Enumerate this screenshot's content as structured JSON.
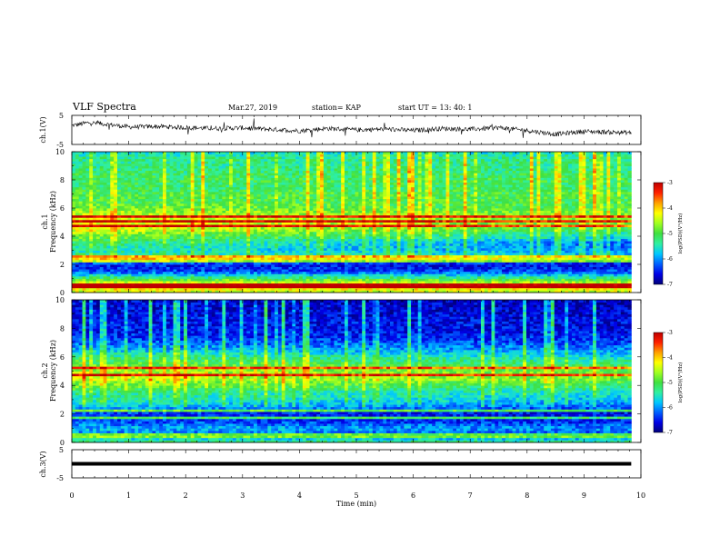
{
  "header": {
    "title": "VLF Spectra",
    "date": "Mar.27, 2019",
    "station": "station= KAP",
    "start_time": "start  UT  =   13: 40: 1"
  },
  "colors": {
    "colormap": [
      "#00007a",
      "#0000e6",
      "#0060ff",
      "#00c8ff",
      "#30f0a0",
      "#40e040",
      "#a0ff20",
      "#ffff00",
      "#ffa000",
      "#ff2000",
      "#c00000"
    ],
    "background": "#ffffff",
    "trace": "#000000"
  },
  "chart_data": [
    {
      "type": "line",
      "id": "ch1_waveform",
      "ylabel": "ch.1(V)",
      "ylim": [
        -5,
        5
      ],
      "y_ticks": [
        "5",
        "-5"
      ],
      "xlim": [
        0,
        10
      ],
      "x_end_data": 9.83,
      "description_values": {
        "baseline_start": 1.5,
        "baseline_mid": 0.0,
        "baseline_end": -0.8
      },
      "series": [
        {
          "x": [
            0,
            0.3,
            0.6,
            1.0,
            1.5,
            2.0,
            2.5,
            3.0,
            3.5,
            4.0,
            4.5,
            5.0,
            5.5,
            6.0,
            6.5,
            7.0,
            7.5,
            8.0,
            8.5,
            9.0,
            9.5,
            9.83
          ],
          "y": [
            1.5,
            2.5,
            2.0,
            1.0,
            1.2,
            0.8,
            0.5,
            0.7,
            0.2,
            -0.3,
            0.5,
            0.0,
            0.3,
            -0.2,
            0.5,
            0.2,
            0.8,
            -0.2,
            -1.5,
            -0.5,
            -0.8,
            -1.0
          ]
        }
      ]
    },
    {
      "type": "heatmap",
      "id": "ch1_spectrogram",
      "ylabel": "ch.1\nFrequency (kHz)",
      "ylim": [
        0,
        10
      ],
      "y_ticks": [
        "0",
        "2",
        "4",
        "6",
        "8",
        "10"
      ],
      "xlim": [
        0,
        10
      ],
      "x_end_data": 9.83,
      "colorbar": {
        "label": "log(PSD)(V²/Hz)",
        "range": [
          -7,
          -3
        ],
        "ticks": [
          "-3",
          "-4",
          "-5",
          "-6",
          "-7"
        ]
      },
      "frequency_profile": {
        "freq_kHz": [
          0,
          0.5,
          1,
          1.5,
          2,
          2.5,
          3,
          3.5,
          4,
          4.5,
          5,
          5.5,
          6,
          6.5,
          7,
          7.5,
          8,
          8.5,
          9,
          9.5,
          10
        ],
        "log_psd_start": [
          -4.5,
          -3.8,
          -5.0,
          -6.3,
          -6.5,
          -5.0,
          -5.5,
          -5.2,
          -4.8,
          -4.3,
          -4.2,
          -4.4,
          -4.8,
          -5.0,
          -5.0,
          -5.2,
          -5.1,
          -5.2,
          -5.3,
          -5.3,
          -5.6
        ],
        "log_psd_end": [
          -4.5,
          -4.0,
          -5.2,
          -6.3,
          -6.6,
          -5.6,
          -6.0,
          -6.2,
          -5.6,
          -5.2,
          -4.8,
          -4.8,
          -5.0,
          -5.1,
          -5.0,
          -5.2,
          -5.1,
          -5.2,
          -5.3,
          -5.3,
          -5.6
        ]
      },
      "line_frequencies_kHz": [
        2.2,
        2.5,
        4.7,
        5.1,
        5.4,
        0.4,
        0.6
      ]
    },
    {
      "type": "heatmap",
      "id": "ch2_spectrogram",
      "ylabel": "ch.2\nFrequency (kHz)",
      "ylim": [
        0,
        10
      ],
      "y_ticks": [
        "0",
        "2",
        "4",
        "6",
        "8",
        "10"
      ],
      "xlim": [
        0,
        10
      ],
      "x_end_data": 9.83,
      "colorbar": {
        "label": "log(PSD)(V²/Hz)",
        "range": [
          -7,
          -3
        ],
        "ticks": [
          "-3",
          "-4",
          "-5",
          "-6",
          "-7"
        ]
      },
      "frequency_profile": {
        "freq_kHz": [
          0,
          0.5,
          1,
          1.5,
          2,
          2.5,
          3,
          3.5,
          4,
          4.5,
          5,
          5.5,
          6,
          6.5,
          7,
          7.5,
          8,
          8.5,
          9,
          9.5,
          10
        ],
        "log_psd_start": [
          -5.0,
          -6.2,
          -5.8,
          -6.3,
          -6.4,
          -5.8,
          -5.4,
          -5.3,
          -4.8,
          -4.4,
          -4.5,
          -4.9,
          -5.2,
          -5.8,
          -6.2,
          -6.4,
          -6.5,
          -6.5,
          -6.6,
          -6.6,
          -6.7
        ],
        "log_psd_end": [
          -5.2,
          -6.4,
          -6.0,
          -6.5,
          -6.6,
          -6.2,
          -5.8,
          -5.6,
          -5.2,
          -4.8,
          -4.9,
          -5.2,
          -5.6,
          -6.0,
          -6.3,
          -6.5,
          -6.6,
          -6.6,
          -6.7,
          -6.7,
          -6.8
        ]
      },
      "line_frequencies_kHz": [
        1.8,
        2.2,
        4.8,
        5.2,
        0.5
      ]
    },
    {
      "type": "line",
      "id": "ch3_waveform",
      "ylabel": "ch.3(V)",
      "ylim": [
        -5,
        5
      ],
      "y_ticks": [
        "5",
        "-5"
      ],
      "xlabel": "Time (min)",
      "x_ticks": [
        "0",
        "1",
        "2",
        "3",
        "4",
        "5",
        "6",
        "7",
        "8",
        "9",
        "10"
      ],
      "xlim": [
        0,
        10
      ],
      "x_end_data": 9.83,
      "series": [
        {
          "x": [
            0,
            9.83
          ],
          "y": [
            0.0,
            0.0
          ]
        }
      ]
    }
  ]
}
